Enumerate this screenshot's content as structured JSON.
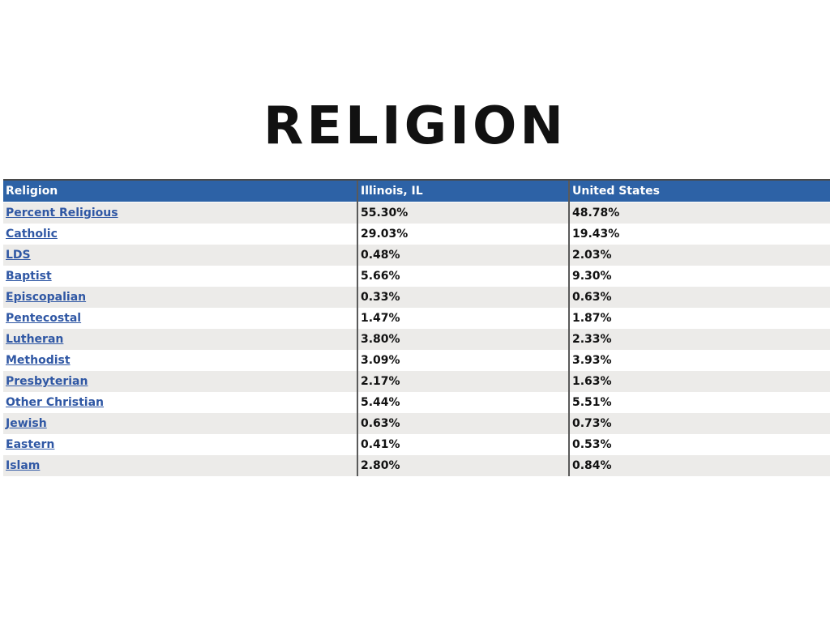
{
  "title": "RELIGION",
  "table": {
    "headers": [
      "Religion",
      "Illinois, IL",
      "United States"
    ],
    "rows": [
      {
        "name": "Percent Religious",
        "illinois": "55.30%",
        "us": "48.78%"
      },
      {
        "name": "Catholic",
        "illinois": "29.03%",
        "us": "19.43%"
      },
      {
        "name": "LDS",
        "illinois": "0.48%",
        "us": "2.03%"
      },
      {
        "name": "Baptist",
        "illinois": "5.66%",
        "us": "9.30%"
      },
      {
        "name": "Episcopalian",
        "illinois": "0.33%",
        "us": "0.63%"
      },
      {
        "name": "Pentecostal",
        "illinois": "1.47%",
        "us": "1.87%"
      },
      {
        "name": "Lutheran",
        "illinois": "3.80%",
        "us": "2.33%"
      },
      {
        "name": "Methodist",
        "illinois": "3.09%",
        "us": "3.93%"
      },
      {
        "name": "Presbyterian",
        "illinois": "2.17%",
        "us": "1.63%"
      },
      {
        "name": "Other Christian",
        "illinois": "5.44%",
        "us": "5.51%"
      },
      {
        "name": "Jewish",
        "illinois": "0.63%",
        "us": "0.73%"
      },
      {
        "name": "Eastern",
        "illinois": "0.41%",
        "us": "0.53%"
      },
      {
        "name": "Islam",
        "illinois": "2.80%",
        "us": "0.84%"
      }
    ]
  },
  "colors": {
    "header_bg": "#2d62a6",
    "row_alt_bg": "#ecebe9",
    "link": "#2f57a4"
  }
}
